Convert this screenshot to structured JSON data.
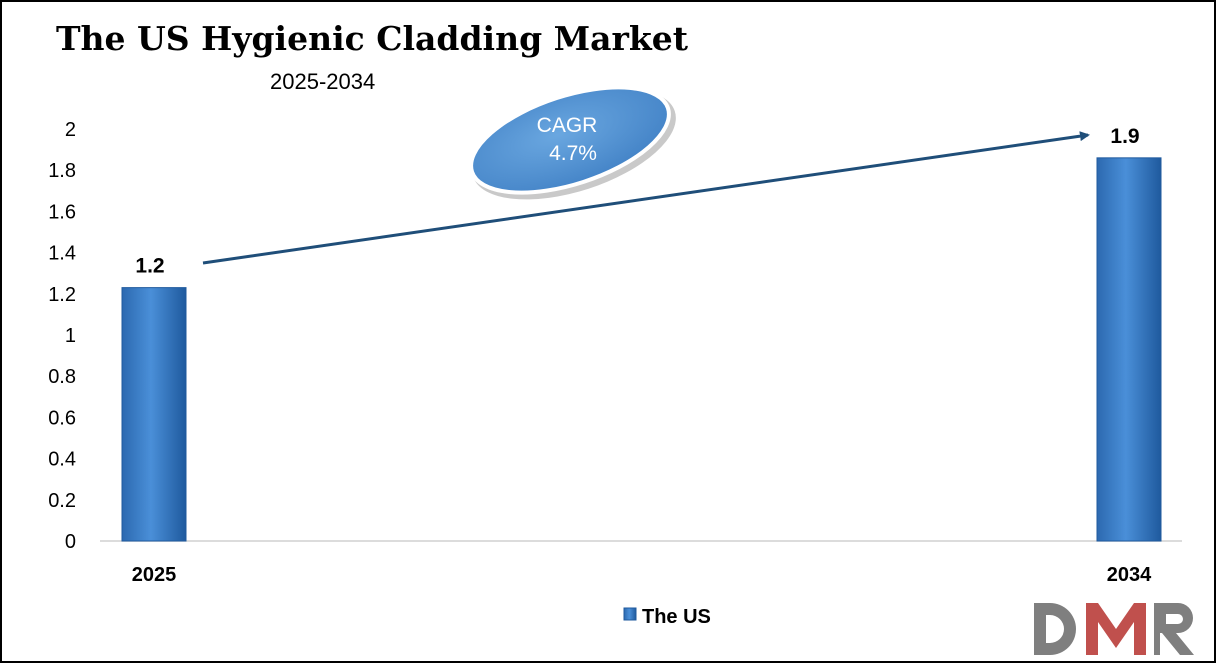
{
  "chart_data": {
    "type": "bar",
    "title": "The US Hygienic Cladding Market",
    "subtitle": "2025-2034",
    "categories": [
      "2025",
      "2034"
    ],
    "series": [
      {
        "name": "The US",
        "values": [
          1.23,
          1.86
        ],
        "data_labels": [
          "1.2",
          "1.9"
        ]
      }
    ],
    "ylim": [
      0,
      2
    ],
    "yticks": [
      "0",
      "0.2",
      "0.4",
      "0.6",
      "0.8",
      "1",
      "1.2",
      "1.4",
      "1.6",
      "1.8",
      "2"
    ],
    "grid": false,
    "legend": "bottom-center",
    "annotation": {
      "line1": "CAGR",
      "line2": "4.7%"
    },
    "logo": "DMR",
    "colors": {
      "bar": "#3a7dc9",
      "bar_dark": "#1f5a9e",
      "arrow": "#1f4e79",
      "ellipse": "#5b9bd5",
      "logo_grey": "#7f7f7f",
      "logo_red": "#c0504d"
    }
  }
}
